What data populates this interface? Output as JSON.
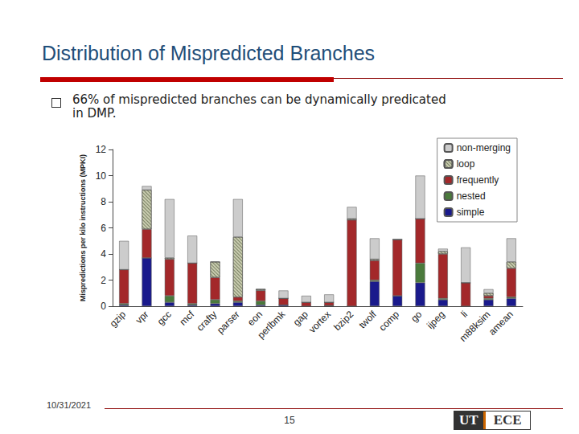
{
  "slide": {
    "title": "Distribution of Mispredicted Branches",
    "bullet": "66% of mispredicted branches can be dynamically predicated in DMP.",
    "date": "10/31/2021",
    "page": "15",
    "logo": [
      "UT",
      "ECE"
    ]
  },
  "chart_data": {
    "type": "bar",
    "stacked": true,
    "grid": false,
    "legend": "upper right",
    "y_label": "Mispredictions per kilo instructions (MPKI)",
    "categories": [
      "gzip",
      "vpr",
      "gcc",
      "mcf",
      "crafty",
      "parser",
      "eon",
      "perlbmk",
      "gap",
      "vortex",
      "bzip2",
      "twolf",
      "comp",
      "go",
      "ijpeg",
      "li",
      "m88ksim",
      "amean"
    ],
    "ylim": [
      0,
      12
    ],
    "yticks": [
      0,
      2,
      4,
      6,
      8,
      10,
      12
    ],
    "series": [
      {
        "name": "simple",
        "color": "#1a1a8c",
        "values": [
          0.1,
          3.7,
          0.3,
          0.1,
          0.2,
          0.3,
          0.1,
          0.1,
          0.0,
          0.05,
          0.0,
          1.9,
          0.8,
          1.8,
          0.5,
          0.0,
          0.5,
          0.6
        ]
      },
      {
        "name": "nested",
        "color": "#4a7a3c",
        "values": [
          0.1,
          0.0,
          0.5,
          0.1,
          0.3,
          0.1,
          0.3,
          0.0,
          0.0,
          0.0,
          0.0,
          0.1,
          0.0,
          1.5,
          0.1,
          0.0,
          0.1,
          0.1
        ]
      },
      {
        "name": "frequently",
        "color": "#a3282a",
        "values": [
          2.6,
          2.2,
          2.8,
          3.1,
          1.7,
          0.3,
          0.8,
          0.5,
          0.3,
          0.25,
          6.6,
          1.5,
          4.3,
          3.4,
          3.4,
          1.8,
          0.2,
          2.2
        ]
      },
      {
        "name": "loop",
        "color": "#c9ccb0",
        "values": [
          0.0,
          3.0,
          0.1,
          0.0,
          1.2,
          4.6,
          0.1,
          0.0,
          0.0,
          0.0,
          0.1,
          0.1,
          0.0,
          0.0,
          0.2,
          0.0,
          0.2,
          0.5
        ]
      },
      {
        "name": "non-merging",
        "color": "#cccccc",
        "values": [
          2.2,
          0.3,
          4.5,
          2.1,
          0.0,
          2.9,
          0.0,
          0.6,
          0.5,
          0.6,
          0.9,
          1.6,
          0.0,
          3.3,
          0.2,
          2.7,
          0.3,
          1.8
        ]
      }
    ]
  }
}
